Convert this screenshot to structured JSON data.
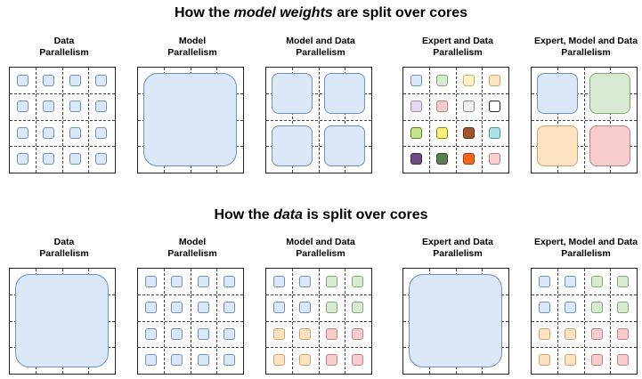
{
  "sections": [
    {
      "title_prefix": "How the ",
      "title_emph": "model weights",
      "title_suffix": " are split over cores",
      "panels": [
        {
          "label_line1": "Data",
          "label_line2": "Parallelism"
        },
        {
          "label_line1": "Model",
          "label_line2": "Parallelism"
        },
        {
          "label_line1": "Model and Data",
          "label_line2": "Parallelism"
        },
        {
          "label_line1": "Expert and Data",
          "label_line2": "Parallelism"
        },
        {
          "label_line1": "Expert, Model and Data",
          "label_line2": "Parallelism"
        }
      ]
    },
    {
      "title_prefix": "How the ",
      "title_emph": "data",
      "title_suffix": " is split over cores",
      "panels": [
        {
          "label_line1": "Data",
          "label_line2": "Parallelism"
        },
        {
          "label_line1": "Model",
          "label_line2": "Parallelism"
        },
        {
          "label_line1": "Model and Data",
          "label_line2": "Parallelism"
        },
        {
          "label_line1": "Expert and Data",
          "label_line2": "Parallelism"
        },
        {
          "label_line1": "Expert, Model and Data",
          "label_line2": "Parallelism"
        }
      ]
    }
  ],
  "colors": {
    "blue": [
      "#dbe8f8",
      "#6f8fc0"
    ],
    "green": [
      "#d8ebd2",
      "#7fa874"
    ],
    "yellow_light": [
      "#fff3c4",
      "#c9b46a"
    ],
    "peach": [
      "#fde3c2",
      "#d0a26a"
    ],
    "lavender": [
      "#e3d8ee",
      "#9d86b8"
    ],
    "pink": [
      "#f7cccc",
      "#c67f7f"
    ],
    "lightgray": [
      "#f0f0f0",
      "#8a8a8a"
    ],
    "white": [
      "#ffffff",
      "#222222"
    ],
    "lime": [
      "#c6e58a",
      "#5d7d2a"
    ],
    "yellow": [
      "#f6f07a",
      "#8c8420"
    ],
    "brown": [
      "#a1552c",
      "#5e2e12"
    ],
    "cyan": [
      "#a8e2e4",
      "#4a9a9e"
    ],
    "purple": [
      "#6d4b84",
      "#3d2750"
    ],
    "darkgreen": [
      "#5b7f54",
      "#2f4a2a"
    ],
    "orange": [
      "#f4661c",
      "#a23e08"
    ],
    "rose": [
      "#f8cfcf",
      "#c07a7a"
    ]
  },
  "top_expert_cell_colors": [
    [
      "blue",
      "green",
      "yellow_light",
      "peach"
    ],
    [
      "lavender",
      "pink",
      "lightgray",
      "white"
    ],
    [
      "lime",
      "yellow",
      "brown",
      "cyan"
    ],
    [
      "purple",
      "darkgreen",
      "orange",
      "rose"
    ]
  ],
  "top_emd_block_colors": [
    "blue",
    "green",
    "peach",
    "pink"
  ],
  "bottom_md_quadrant_colors": [
    "blue",
    "green",
    "peach",
    "pink"
  ],
  "bottom_emd_quadrant_colors": [
    "blue",
    "green",
    "peach",
    "pink"
  ]
}
